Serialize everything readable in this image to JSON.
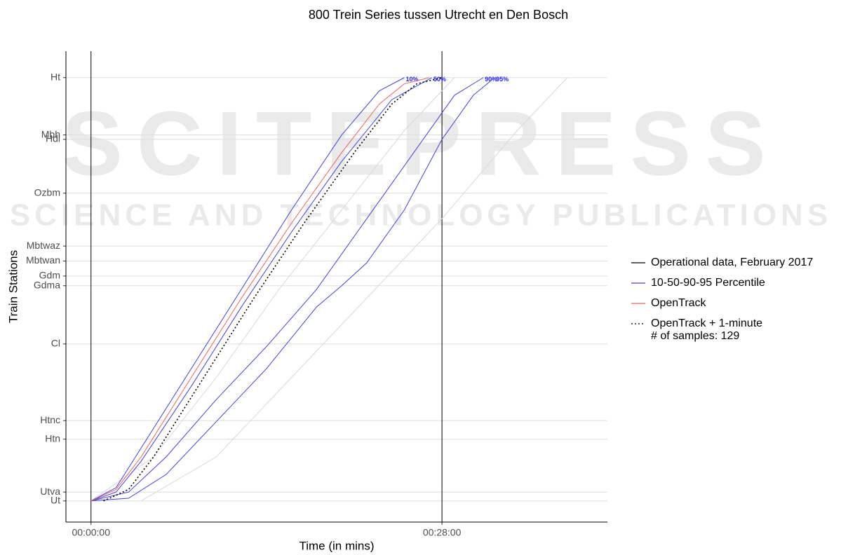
{
  "chart_data": {
    "type": "line",
    "title": "800 Trein Series tussen Utrecht en Den Bosch",
    "x_label": "Time (in mins)",
    "y_label": "Train Stations",
    "xlim": [
      -2,
      41.2
    ],
    "xticks": [
      {
        "value": 0,
        "label": "00:00:00"
      },
      {
        "value": 28,
        "label": "00:28:00"
      }
    ],
    "ylim": [
      -2.4,
      51
    ],
    "yticks": [
      {
        "value": 0,
        "label": "Ut"
      },
      {
        "value": 1.0,
        "label": "Utva"
      },
      {
        "value": 7.0,
        "label": "Htn"
      },
      {
        "value": 9.1,
        "label": "Htnc"
      },
      {
        "value": 17.8,
        "label": "Cl"
      },
      {
        "value": 24.4,
        "label": "Gdma"
      },
      {
        "value": 25.5,
        "label": "Gdm"
      },
      {
        "value": 27.2,
        "label": "Mbtwan"
      },
      {
        "value": 28.9,
        "label": "Mbtwaz"
      },
      {
        "value": 34.9,
        "label": "Ozbm"
      },
      {
        "value": 41.0,
        "label": "Hdl"
      },
      {
        "value": 41.5,
        "label": "Mbh"
      },
      {
        "value": 48.0,
        "label": "Ht"
      }
    ],
    "grid": true,
    "legend_note": "# of samples: 129",
    "watermark": [
      "SCITEPRESS",
      "SCIENCE AND TECHNOLOGY PUBLICATIONS"
    ],
    "series": [
      {
        "color": "#d9d9d9",
        "style": "solid",
        "x": [
          0,
          5,
          10,
          15,
          20,
          25,
          29
        ],
        "values": [
          0,
          5,
          14,
          24,
          33,
          42,
          48
        ]
      },
      {
        "name": "Operational data, February 2017",
        "color": "#d9d9d9",
        "style": "solid",
        "x": [
          4,
          10,
          16,
          22,
          28,
          34,
          38
        ],
        "values": [
          0,
          5,
          14,
          23,
          32,
          42,
          48
        ]
      },
      {
        "name": "10-50-90-95 Percentile",
        "label": "10%",
        "color": "#4040e0",
        "style": "solid",
        "x": [
          0,
          2,
          4,
          8,
          12,
          16,
          20,
          23,
          25
        ],
        "values": [
          0,
          1.5,
          6,
          15,
          24,
          33,
          41.5,
          46.5,
          48
        ]
      },
      {
        "label": "50%",
        "color": "#4040e0",
        "style": "solid",
        "x": [
          0,
          2,
          4,
          8,
          12,
          16,
          20,
          24,
          27.2
        ],
        "values": [
          0,
          1,
          4.5,
          13,
          22,
          30.5,
          38.5,
          45.5,
          48
        ]
      },
      {
        "label": "90%",
        "color": "#4040e0",
        "style": "solid",
        "x": [
          0,
          3,
          6,
          10,
          14,
          18,
          22,
          26,
          29,
          31.3
        ],
        "values": [
          0,
          1,
          5,
          11.5,
          17.5,
          24,
          32,
          40,
          46,
          48
        ]
      },
      {
        "label": "95%",
        "color": "#4040e0",
        "style": "solid",
        "x": [
          0,
          3,
          6,
          10,
          14,
          18,
          20,
          22,
          25,
          28,
          30.5,
          32.2
        ],
        "values": [
          0,
          0.3,
          3,
          9,
          15,
          22,
          24.4,
          27,
          33,
          41,
          46,
          48
        ]
      },
      {
        "name": "OpenTrack",
        "color": "#f06060",
        "style": "solid",
        "x": [
          0,
          2,
          4,
          8,
          12,
          16,
          20,
          23,
          25,
          27
        ],
        "values": [
          0,
          1.3,
          5,
          14,
          23,
          31.5,
          39.5,
          45,
          47.3,
          48
        ]
      },
      {
        "name": "OpenTrack + 1-minute",
        "color": "#000000",
        "style": "dotted",
        "x": [
          1,
          3,
          5,
          9,
          13,
          17,
          21,
          24,
          26,
          28
        ],
        "values": [
          0,
          1.3,
          5,
          14,
          23,
          31.5,
          39.5,
          45,
          47.3,
          48
        ]
      }
    ]
  }
}
